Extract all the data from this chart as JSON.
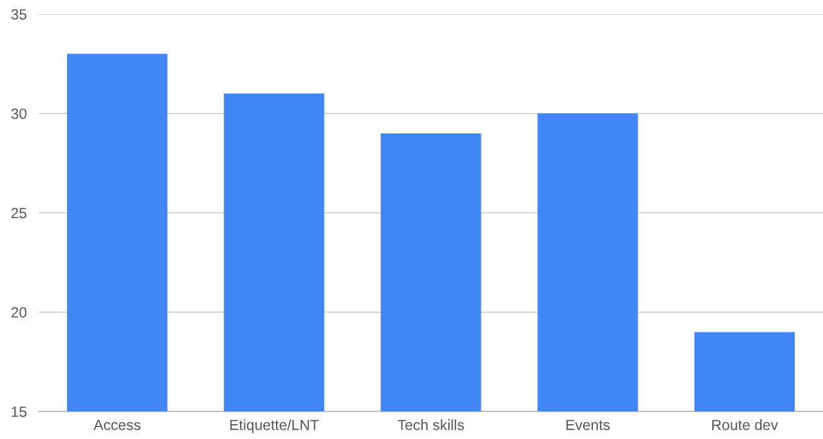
{
  "chart_data": {
    "type": "bar",
    "categories": [
      "Access",
      "Etiquette/LNT",
      "Tech skills",
      "Events",
      "Route dev"
    ],
    "values": [
      33,
      31,
      29,
      30,
      19
    ],
    "color": "#4285f4",
    "ylim": [
      15,
      35
    ],
    "yticks": [
      15,
      20,
      25,
      30,
      35
    ],
    "grid": "y",
    "legend": false
  }
}
